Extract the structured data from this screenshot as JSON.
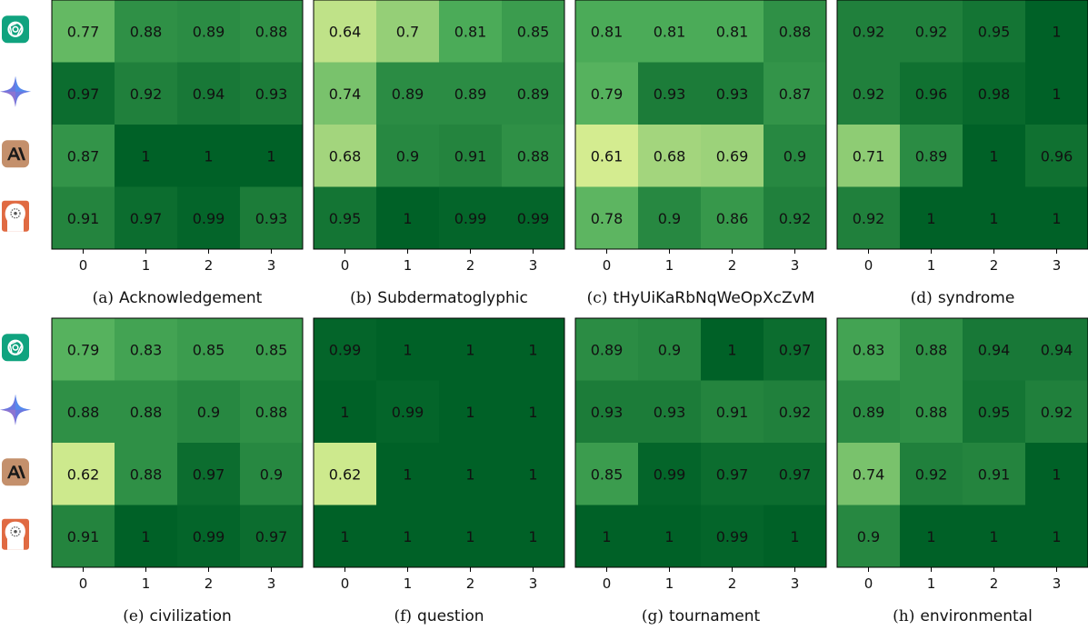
{
  "row_icons": [
    {
      "name": "openai-logo-icon",
      "bg": "#10a37f"
    },
    {
      "name": "gemini-sparkle-icon",
      "bg": "transparent"
    },
    {
      "name": "anthropic-logo-icon",
      "bg": "#c4906c"
    },
    {
      "name": "llama-head-icon",
      "bg": "#e06a42"
    }
  ],
  "colors": {
    "low": "#dbef93",
    "mid": "#4faf5b",
    "high": "#006127"
  },
  "chart_data": [
    {
      "type": "heatmap",
      "tag": "(a)",
      "title": "Acknowledgement",
      "x_ticks": [
        "0",
        "1",
        "2",
        "3"
      ],
      "values": [
        [
          0.77,
          0.88,
          0.89,
          0.88
        ],
        [
          0.97,
          0.92,
          0.94,
          0.93
        ],
        [
          0.87,
          1.0,
          1.0,
          1.0
        ],
        [
          0.91,
          0.97,
          0.99,
          0.93
        ]
      ]
    },
    {
      "type": "heatmap",
      "tag": "(b)",
      "title": "Subdermatoglyphic",
      "x_ticks": [
        "0",
        "1",
        "2",
        "3"
      ],
      "values": [
        [
          0.64,
          0.7,
          0.81,
          0.85
        ],
        [
          0.74,
          0.89,
          0.89,
          0.89
        ],
        [
          0.68,
          0.9,
          0.91,
          0.88
        ],
        [
          0.95,
          1.0,
          0.99,
          0.99
        ]
      ]
    },
    {
      "type": "heatmap",
      "tag": "(c)",
      "title": "tHyUiKaRbNqWeOpXcZvM",
      "x_ticks": [
        "0",
        "1",
        "2",
        "3"
      ],
      "values": [
        [
          0.81,
          0.81,
          0.81,
          0.88
        ],
        [
          0.79,
          0.93,
          0.93,
          0.87
        ],
        [
          0.61,
          0.68,
          0.69,
          0.9
        ],
        [
          0.78,
          0.9,
          0.86,
          0.92
        ]
      ]
    },
    {
      "type": "heatmap",
      "tag": "(d)",
      "title": "syndrome",
      "x_ticks": [
        "0",
        "1",
        "2",
        "3"
      ],
      "values": [
        [
          0.92,
          0.92,
          0.95,
          1.0
        ],
        [
          0.92,
          0.96,
          0.98,
          1.0
        ],
        [
          0.71,
          0.89,
          1.0,
          0.96
        ],
        [
          0.92,
          1.0,
          1.0,
          1.0
        ]
      ]
    },
    {
      "type": "heatmap",
      "tag": "(e)",
      "title": "civilization",
      "x_ticks": [
        "0",
        "1",
        "2",
        "3"
      ],
      "values": [
        [
          0.79,
          0.83,
          0.85,
          0.85
        ],
        [
          0.88,
          0.88,
          0.9,
          0.88
        ],
        [
          0.62,
          0.88,
          0.97,
          0.9
        ],
        [
          0.91,
          1.0,
          0.99,
          0.97
        ]
      ]
    },
    {
      "type": "heatmap",
      "tag": "(f)",
      "title": "question",
      "x_ticks": [
        "0",
        "1",
        "2",
        "3"
      ],
      "values": [
        [
          0.99,
          1.0,
          1.0,
          1.0
        ],
        [
          1.0,
          0.99,
          1.0,
          1.0
        ],
        [
          0.62,
          1.0,
          1.0,
          1.0
        ],
        [
          1.0,
          1.0,
          1.0,
          1.0
        ]
      ]
    },
    {
      "type": "heatmap",
      "tag": "(g)",
      "title": "tournament",
      "x_ticks": [
        "0",
        "1",
        "2",
        "3"
      ],
      "values": [
        [
          0.89,
          0.9,
          1.0,
          0.97
        ],
        [
          0.93,
          0.93,
          0.91,
          0.92
        ],
        [
          0.85,
          0.99,
          0.97,
          0.97
        ],
        [
          1.0,
          1.0,
          0.99,
          1.0
        ]
      ]
    },
    {
      "type": "heatmap",
      "tag": "(h)",
      "title": "environmental",
      "x_ticks": [
        "0",
        "1",
        "2",
        "3"
      ],
      "values": [
        [
          0.83,
          0.88,
          0.94,
          0.94
        ],
        [
          0.89,
          0.88,
          0.95,
          0.92
        ],
        [
          0.74,
          0.92,
          0.91,
          1.0
        ],
        [
          0.9,
          1.0,
          1.0,
          1.0
        ]
      ]
    }
  ]
}
